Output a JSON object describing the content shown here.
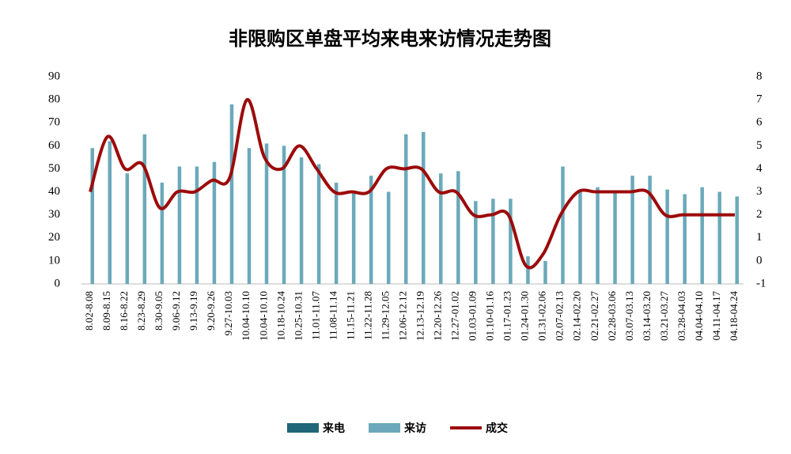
{
  "chart_data": {
    "type": "bar-line",
    "title": "非限购区单盘平均来电来访情况走势图",
    "categories": [
      "8.02-8.08",
      "8.09-8.15",
      "8.16-8.22",
      "8.23-8.29",
      "8.30-9.05",
      "9.06-9.12",
      "9.13-9.19",
      "9.20-9.26",
      "9.27-10.03",
      "10.04-10.10",
      "10.04-10.10",
      "10.18-10.24",
      "10.25-10.31",
      "11.01-11.07",
      "11.08-11.14",
      "11.15-11.21",
      "11.22-11.28",
      "11.29-12.05",
      "12.06-12.12",
      "12.13-12.19",
      "12.20-12.26",
      "12.27-01.02",
      "01.03-01.09",
      "01.10-01.16",
      "01.17-01.23",
      "01.24-01.30",
      "01.31-02.06",
      "02.07-02.13",
      "02.14-02.20",
      "02.21-02.27",
      "02.28-03.06",
      "03.07-03.13",
      "03.14-03.20",
      "03.21-03.27",
      "03.28-04.03",
      "04.04-04.10",
      "04.11-04.17",
      "04.18-04.24"
    ],
    "series": [
      {
        "name": "来电",
        "type": "bar",
        "color": "#1f6678",
        "values": [
          null,
          null,
          null,
          null,
          null,
          null,
          null,
          null,
          null,
          null,
          null,
          null,
          null,
          null,
          null,
          null,
          null,
          null,
          null,
          null,
          null,
          null,
          null,
          null,
          null,
          null,
          null,
          null,
          null,
          null,
          null,
          null,
          null,
          null,
          null,
          null,
          null,
          null
        ]
      },
      {
        "name": "来访",
        "type": "bar",
        "color": "#6ba9ba",
        "values": [
          59,
          62,
          48,
          65,
          44,
          51,
          51,
          53,
          78,
          59,
          61,
          60,
          55,
          52,
          44,
          40,
          47,
          40,
          65,
          66,
          48,
          49,
          36,
          37,
          37,
          12,
          10,
          51,
          40,
          42,
          40,
          47,
          47,
          41,
          39,
          42,
          40,
          38
        ]
      },
      {
        "name": "成交",
        "type": "line",
        "axis": "y2",
        "color": "#9c0a0a",
        "values": [
          3,
          5.4,
          4,
          4.2,
          2.3,
          3,
          3,
          3.5,
          3.6,
          7,
          4.5,
          4,
          5,
          4,
          3,
          3,
          3,
          4,
          4,
          4,
          3,
          3,
          2,
          2,
          2,
          -0.2,
          0.3,
          2,
          3,
          3,
          3,
          3,
          3,
          2,
          2,
          2,
          2,
          2
        ]
      }
    ],
    "ylim": [
      0,
      90
    ],
    "yticks": [
      0,
      10,
      20,
      30,
      40,
      50,
      60,
      70,
      80,
      90
    ],
    "y2lim": [
      -1,
      8
    ],
    "y2ticks": [
      -1,
      0,
      1,
      2,
      3,
      4,
      5,
      6,
      7,
      8
    ]
  }
}
